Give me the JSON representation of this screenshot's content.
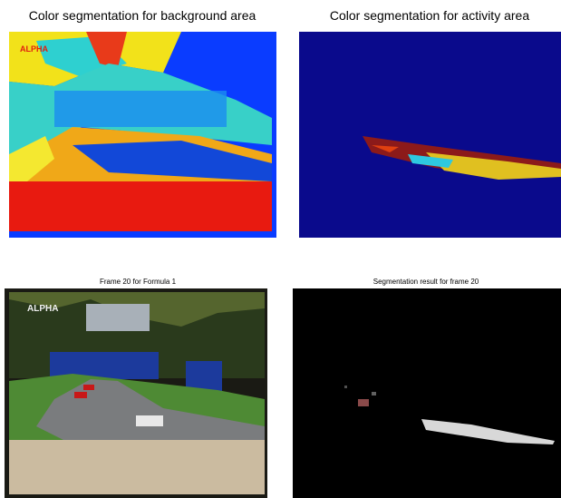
{
  "panels": [
    {
      "title": "Color segmentation for background area"
    },
    {
      "title": "Color segmentation for activity area"
    },
    {
      "title": "Frame 20 for Formula 1"
    },
    {
      "title": "Segmentation result for frame 20"
    }
  ],
  "overlay_text": {
    "logo": "ALPHA"
  }
}
